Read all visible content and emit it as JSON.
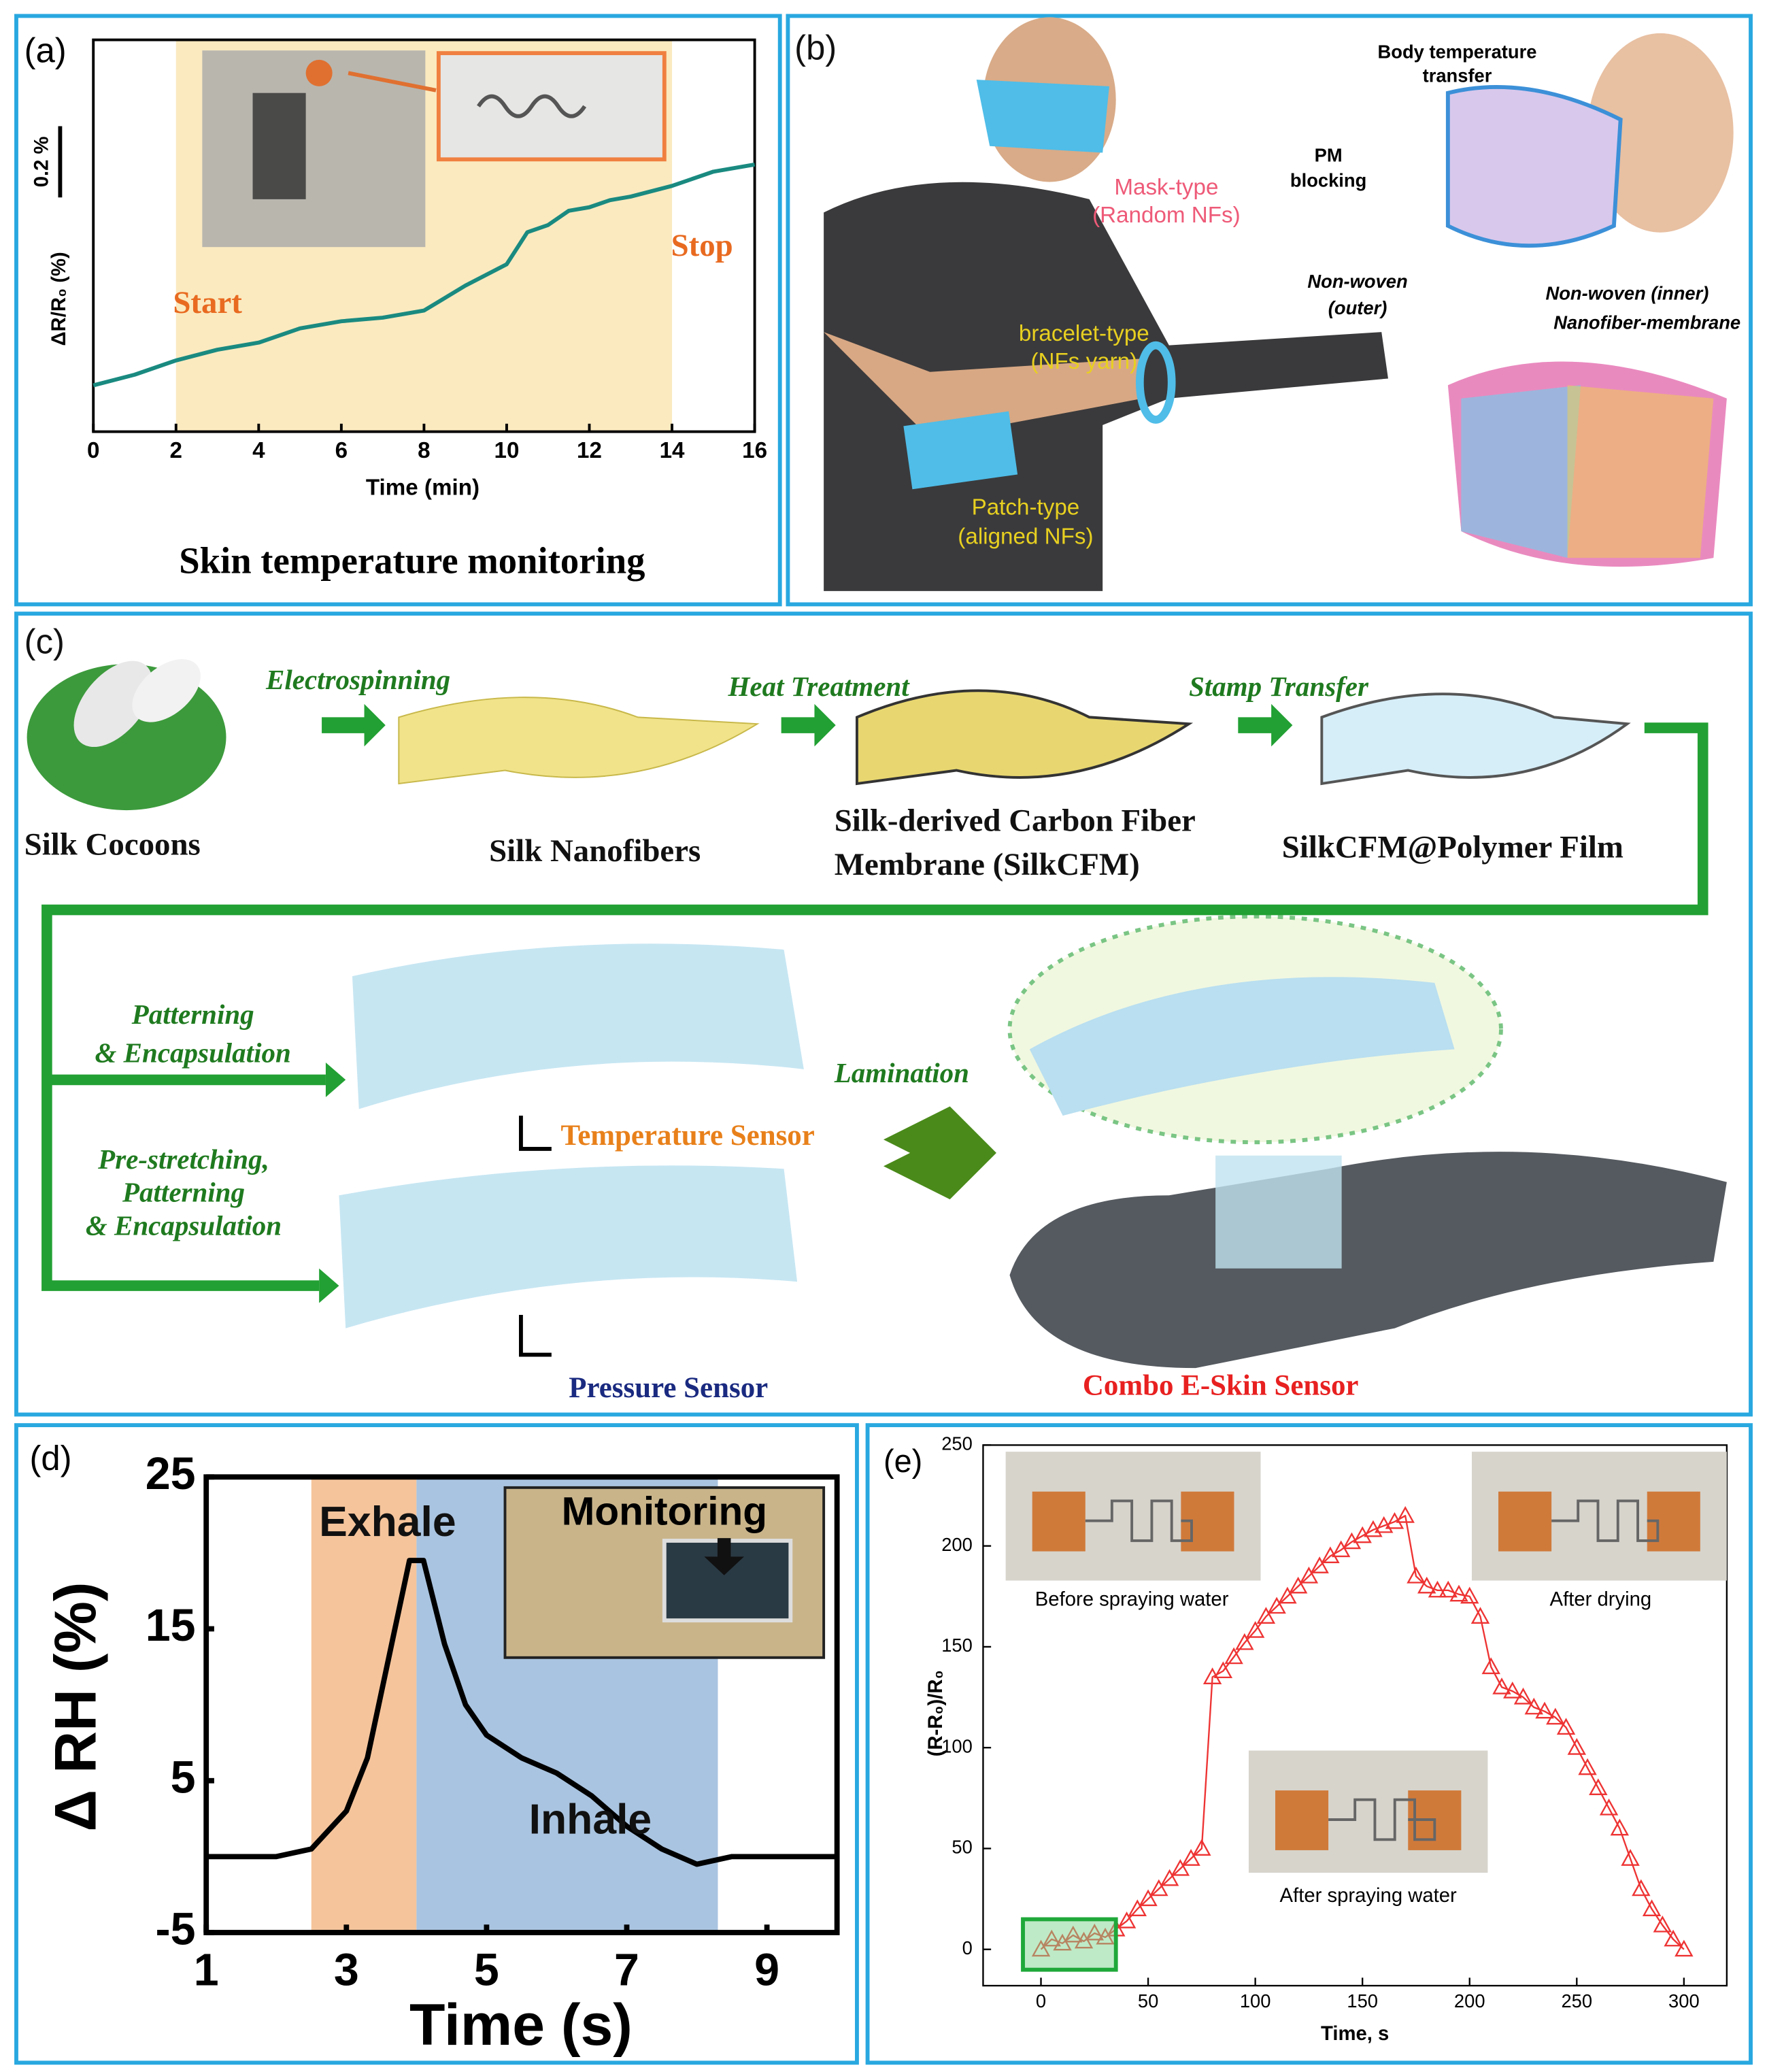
{
  "chart_data": [
    {
      "type": "line",
      "panel_label": "(a)",
      "title": "Skin temperature monitoring",
      "x_label": "Time (min)",
      "y_label": "ΔR/R₀ (%)",
      "x": [
        0,
        1,
        2,
        3,
        4,
        5,
        6,
        7,
        8,
        9,
        10,
        10.5,
        11,
        11.5,
        12,
        12.5,
        13,
        14,
        15,
        16
      ],
      "series": [
        {
          "color": "#1a8a80",
          "values": [
            0.13,
            0.16,
            0.2,
            0.23,
            0.25,
            0.29,
            0.31,
            0.32,
            0.34,
            0.41,
            0.47,
            0.56,
            0.58,
            0.62,
            0.63,
            0.65,
            0.66,
            0.69,
            0.73,
            0.75
          ]
        }
      ],
      "xlim": [
        0,
        16
      ],
      "xticks": [
        0,
        2,
        4,
        6,
        8,
        10,
        12,
        14,
        16
      ],
      "ylim": [
        0,
        1.1
      ],
      "shaded": [
        {
          "range": [
            2,
            14
          ],
          "color": "#fbeac0"
        }
      ],
      "annotations": [
        "Start",
        "Stop"
      ],
      "scale_bar": {
        "value": 0.2,
        "label": "0.2 %"
      }
    },
    {
      "type": "line",
      "panel_label": "(d)",
      "x_label": "Time (s)",
      "y_label": "Δ RH (%)",
      "x": [
        1,
        2,
        2.5,
        3,
        3.3,
        3.6,
        3.9,
        4.1,
        4.4,
        4.7,
        5,
        5.5,
        6,
        6.5,
        7,
        7.5,
        8,
        8.5,
        10
      ],
      "series": [
        {
          "color": "#000000",
          "values": [
            0,
            0,
            0.5,
            3,
            6.5,
            13,
            19.5,
            19.5,
            14,
            10,
            8,
            6.5,
            5.5,
            4,
            2,
            0.5,
            -0.5,
            0,
            0
          ]
        }
      ],
      "xlim": [
        1,
        10
      ],
      "xticks": [
        1,
        3,
        5,
        7,
        9
      ],
      "ylim": [
        -5,
        25
      ],
      "yticks": [
        -5,
        5,
        15,
        25
      ],
      "shaded": [
        {
          "range": [
            2.5,
            4
          ],
          "color": "#f5c49b"
        },
        {
          "range": [
            4,
            8.3
          ],
          "color": "#a9c4e0"
        }
      ],
      "annotations": [
        "Exhale",
        "Inhale"
      ],
      "inset_label": "Monitoring"
    },
    {
      "type": "line",
      "markers": "triangle",
      "panel_label": "(e)",
      "x_label": "Time, s",
      "y_label": "(R-R₀)/R₀",
      "x": [
        0,
        5,
        10,
        15,
        20,
        25,
        30,
        35,
        40,
        45,
        50,
        55,
        60,
        65,
        70,
        75,
        80,
        85,
        90,
        95,
        100,
        105,
        110,
        115,
        120,
        125,
        130,
        135,
        140,
        145,
        150,
        155,
        160,
        165,
        170,
        175,
        180,
        185,
        190,
        195,
        200,
        205,
        210,
        215,
        220,
        225,
        230,
        235,
        240,
        245,
        250,
        255,
        260,
        265,
        270,
        275,
        280,
        285,
        290,
        295,
        300
      ],
      "series": [
        {
          "color": "#ee3333",
          "values": [
            0,
            5,
            3,
            7,
            4,
            8,
            6,
            10,
            14,
            20,
            25,
            30,
            35,
            40,
            45,
            50,
            135,
            138,
            145,
            152,
            158,
            165,
            170,
            175,
            180,
            185,
            190,
            195,
            198,
            202,
            205,
            208,
            210,
            212,
            215,
            185,
            180,
            178,
            178,
            176,
            175,
            165,
            140,
            130,
            128,
            125,
            120,
            118,
            115,
            110,
            100,
            90,
            80,
            70,
            60,
            45,
            30,
            20,
            12,
            5,
            0
          ]
        }
      ],
      "xlim": [
        -27,
        320
      ],
      "xticks": [
        0,
        50,
        100,
        150,
        200,
        250,
        300
      ],
      "ylim": [
        -18,
        250
      ],
      "yticks": [
        0,
        50,
        100,
        150,
        200,
        250
      ],
      "insets": [
        "Before spraying water",
        "After drying",
        "After spraying water"
      ]
    }
  ],
  "panel_b": {
    "panel_label": "(b)",
    "mask_type": [
      "Mask-type",
      "(Random NFs)"
    ],
    "bracelet_type": [
      "bracelet-type",
      "(NFs yarn)"
    ],
    "patch_type": [
      "Patch-type",
      "(aligned NFs)"
    ],
    "body_temperature": [
      "Body temperature",
      "transfer"
    ],
    "pm_blocking": [
      "PM",
      "blocking"
    ],
    "non_woven_outer": [
      "Non-woven",
      "(outer)"
    ],
    "non_woven_inner": "Non-woven (inner)",
    "nanofiber_membrane": "Nanofiber-membrane"
  },
  "panel_c": {
    "panel_label": "(c)",
    "steps": [
      "Electrospinning",
      "Heat Treatment",
      "Stamp Transfer"
    ],
    "materials": [
      "Silk Cocoons",
      "Silk Nanofibers"
    ],
    "silkcfm": [
      "Silk-derived Carbon Fiber",
      "Membrane (SilkCFM)"
    ],
    "film": "SilkCFM@Polymer Film",
    "temp_process": [
      "Patterning",
      "& Encapsulation"
    ],
    "pressure_process": [
      "Pre-stretching,",
      "Patterning",
      "& Encapsulation"
    ],
    "lamination": "Lamination",
    "temperature_sensor": "Temperature Sensor",
    "pressure_sensor": "Pressure Sensor",
    "combo": "Combo E-Skin Sensor"
  }
}
